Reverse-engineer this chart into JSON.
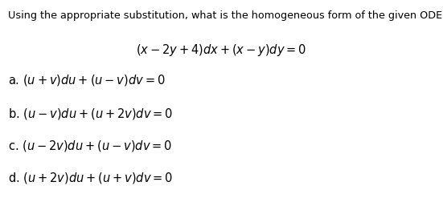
{
  "background_color": "#ffffff",
  "title_text": "Using the appropriate substitution, what is the homogeneous form of the given ODE.",
  "title_fontsize": 9.2,
  "equation_text": "$(x - 2y + 4)dx + (x - y)dy = 0$",
  "equation_fontsize": 10.5,
  "options": [
    {
      "label": "a.",
      "math": "$(u + v)du + (u - v)dv = 0$"
    },
    {
      "label": "b.",
      "math": "$(u - v)du + (u + 2v)dv = 0$"
    },
    {
      "label": "c.",
      "math": "$(u - 2v)du + (u - v)dv = 0$"
    },
    {
      "label": "d.",
      "math": "$(u + 2v)du + (u + v)dv = 0$"
    }
  ],
  "option_fontsize": 10.5
}
